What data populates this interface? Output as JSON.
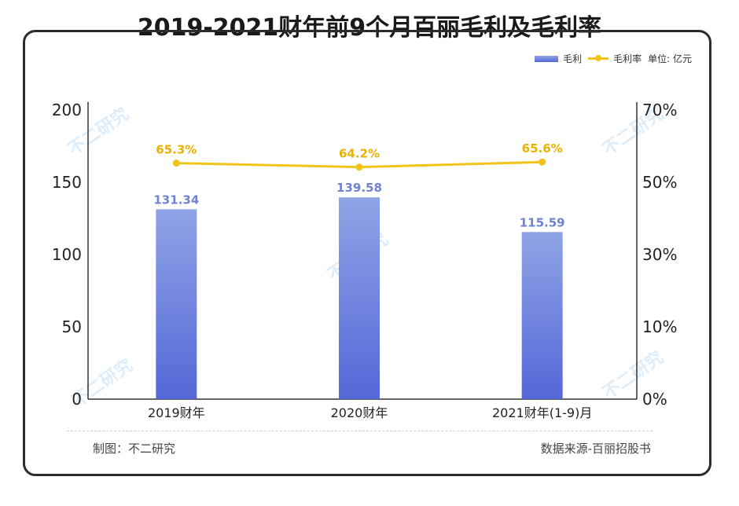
{
  "title": "2019-2021财年前9个月百丽毛利及毛利率",
  "legend": {
    "bar_label": "毛利",
    "line_label": "毛利率",
    "unit": "单位: 亿元"
  },
  "footer": {
    "left": "制图：不二研究",
    "right": "数据来源-百丽招股书"
  },
  "watermark": "不二研究",
  "colors": {
    "bar_top": "#8fa3e6",
    "bar_bottom": "#5468d8",
    "bar_label": "#6f82cf",
    "line": "#f2c318",
    "line_label": "#e9b100"
  },
  "chart_data": {
    "type": "bar",
    "categories": [
      "2019财年",
      "2020财年",
      "2021财年(1-9)月"
    ],
    "series": [
      {
        "name": "毛利",
        "type": "bar",
        "axis": "left",
        "values": [
          131.34,
          139.58,
          115.59
        ],
        "labels": [
          "131.34",
          "139.58",
          "115.59"
        ]
      },
      {
        "name": "毛利率",
        "type": "line",
        "axis": "right",
        "values": [
          65.3,
          64.2,
          65.6
        ],
        "labels": [
          "65.3%",
          "64.2%",
          "65.6%"
        ]
      }
    ],
    "y_left": {
      "ticks": [
        "200",
        "150",
        "100",
        "50",
        "0"
      ],
      "ylim": [
        0,
        200
      ]
    },
    "y_right": {
      "ticks": [
        "70%",
        "50%",
        "30%",
        "10%",
        "0%"
      ],
      "ylim": [
        0,
        80
      ]
    },
    "grid": false,
    "legend_position": "top-right"
  }
}
